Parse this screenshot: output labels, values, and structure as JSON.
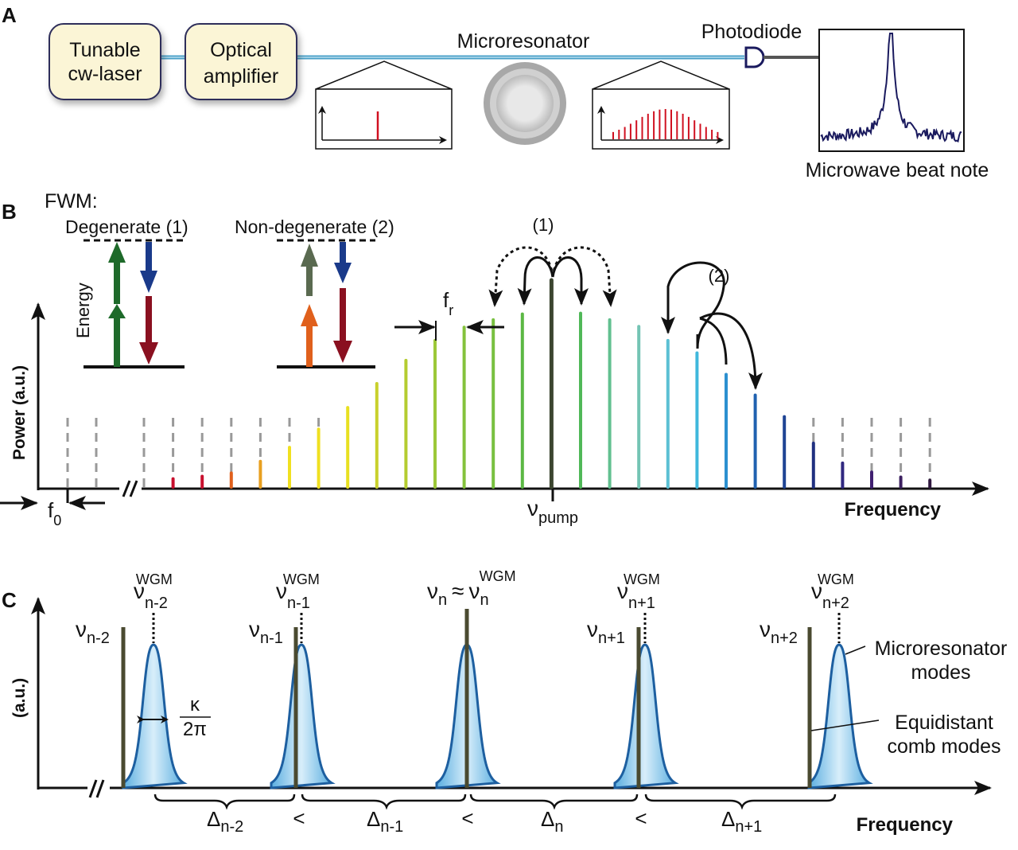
{
  "panels": {
    "a": {
      "letter": "A",
      "laser": [
        "Tunable",
        "cw-laser"
      ],
      "amplifier": [
        "Optical",
        "amplifier"
      ],
      "microresonator": "Microresonator",
      "photodiode": "Photodiode",
      "beat_note": "Microwave beat note"
    },
    "b": {
      "letter": "B",
      "fwm": "FWM:",
      "degenerate": "Degenerate (1)",
      "non_degenerate": "Non-degenerate (2)",
      "energy": "Energy",
      "ylabel": "Power (a.u.)",
      "xlabel": "Frequency",
      "label_1": "(1)",
      "label_2": "(2)",
      "fr": "f",
      "fr_sub": "r",
      "f0": "f",
      "f0_sub": "0",
      "pump": "ν",
      "pump_sub": "pump",
      "comb_power": [
        0,
        0.1,
        0.13,
        0.17,
        0.31,
        0.48,
        0.7,
        0.96,
        1.25,
        1.53,
        1.77,
        1.93,
        2.02,
        2.09,
        2.5,
        2.1,
        2.02,
        1.94,
        1.77,
        1.62,
        1.36,
        1.11,
        0.85,
        0.53,
        0.29,
        0.18,
        0.12,
        0.08
      ],
      "comb_colors": [
        "#999999",
        "#c8102e",
        "#c8102e",
        "#e0601c",
        "#e8a020",
        "#f0e020",
        "#f0e020",
        "#e8e020",
        "#c8d02c",
        "#b4cc30",
        "#9cc838",
        "#84c23c",
        "#78c040",
        "#5cb844",
        "#3c4630",
        "#50b858",
        "#62c090",
        "#74c4b4",
        "#5cc0d4",
        "#40b8dc",
        "#2c90d0",
        "#2062b0",
        "#1f4494",
        "#203080",
        "#302880",
        "#402070",
        "#3c2060",
        "#301840"
      ]
    },
    "c": {
      "letter": "C",
      "ylabel": "(a.u.)",
      "xlabel": "Frequency",
      "modes": [
        {
          "comb": "ν",
          "comb_sub": "n-2",
          "wgm": "ν",
          "wgm_sub": "n-2",
          "wgm_sup": "WGM"
        },
        {
          "comb": "ν",
          "comb_sub": "n-1",
          "wgm": "ν",
          "wgm_sub": "n-1",
          "wgm_sup": "WGM"
        },
        {
          "combined": "ν",
          "combined_sub": "n",
          "approx": "≈",
          "wgm": "ν",
          "wgm_sub": "n",
          "wgm_sup": "WGM"
        },
        {
          "comb": "ν",
          "comb_sub": "n+1",
          "wgm": "ν",
          "wgm_sub": "n+1",
          "wgm_sup": "WGM"
        },
        {
          "comb": "ν",
          "comb_sub": "n+2",
          "wgm": "ν",
          "wgm_sub": "n+2",
          "wgm_sup": "WGM"
        }
      ],
      "kappa": "κ",
      "two_pi": "2π",
      "deltas": [
        {
          "sym": "Δ",
          "sub": "n-2"
        },
        {
          "sym": "Δ",
          "sub": "n-1"
        },
        {
          "sym": "Δ",
          "sub": "n"
        },
        {
          "sym": "Δ",
          "sub": "n+1"
        }
      ],
      "less_than": "<",
      "legend_modes": [
        "Microresonator",
        "modes"
      ],
      "legend_comb": [
        "Equidistant",
        "comb modes"
      ]
    }
  },
  "colors": {
    "box_fill": "#fbf5d6",
    "box_stroke": "#2d2d5a",
    "fiber": "#4aa0c8",
    "beat": "#1a1a5e",
    "comb_dark": "#4a4a30",
    "mode_fill": "#9fcfee",
    "mode_stroke": "#1d5fa0",
    "red": "#d01020"
  }
}
